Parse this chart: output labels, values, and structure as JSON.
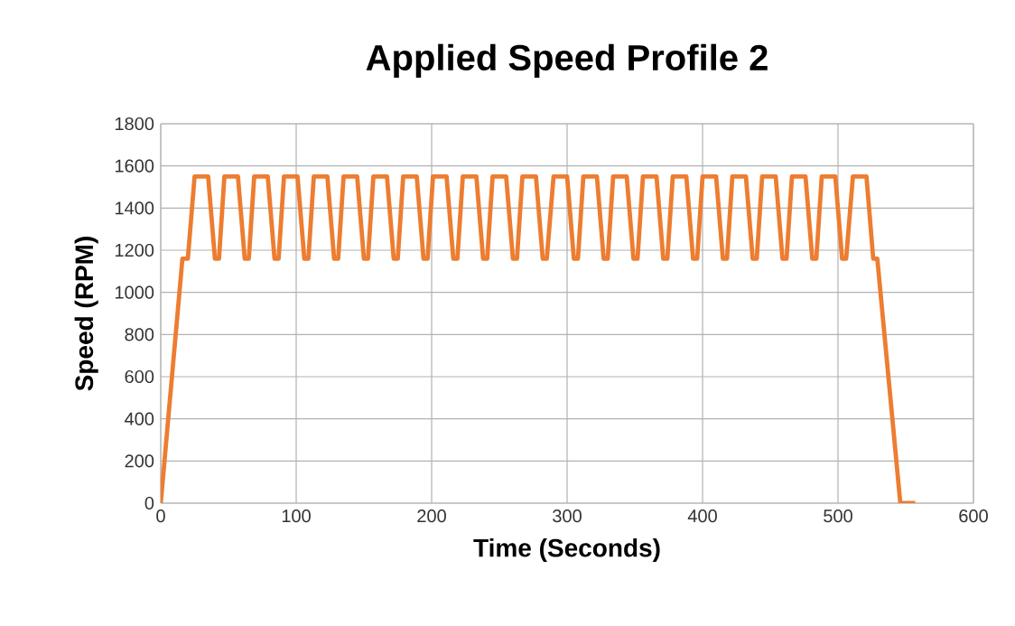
{
  "chart_data": {
    "type": "line",
    "title": "Applied Speed Profile 2",
    "xlabel": "Time (Seconds)",
    "ylabel": "Speed (RPM)",
    "x": [
      0,
      16,
      20,
      25,
      35,
      40,
      43,
      47,
      57,
      62,
      65,
      69,
      79,
      84,
      87,
      91,
      101,
      106,
      109,
      113,
      123,
      128,
      131,
      135,
      145,
      150,
      153,
      157,
      167,
      172,
      175,
      179,
      189,
      194,
      197,
      201,
      211,
      216,
      219,
      223,
      233,
      238,
      241,
      245,
      255,
      260,
      263,
      267,
      277,
      282,
      285,
      290,
      300,
      305,
      308,
      312,
      322,
      327,
      330,
      334,
      344,
      349,
      352,
      356,
      366,
      371,
      374,
      378,
      388,
      393,
      396,
      400,
      410,
      415,
      418,
      422,
      432,
      437,
      440,
      444,
      454,
      459,
      462,
      466,
      476,
      481,
      484,
      488,
      498,
      503,
      506,
      511,
      521,
      526,
      529,
      546,
      557
    ],
    "series": [
      {
        "color": "#ed7d31",
        "values": [
          0,
          1160,
          1160,
          1550,
          1550,
          1160,
          1160,
          1550,
          1550,
          1160,
          1160,
          1550,
          1550,
          1160,
          1160,
          1550,
          1550,
          1160,
          1160,
          1550,
          1550,
          1160,
          1160,
          1550,
          1550,
          1160,
          1160,
          1550,
          1550,
          1160,
          1160,
          1550,
          1550,
          1160,
          1160,
          1550,
          1550,
          1160,
          1160,
          1550,
          1550,
          1160,
          1160,
          1550,
          1550,
          1160,
          1160,
          1550,
          1550,
          1160,
          1160,
          1550,
          1550,
          1160,
          1160,
          1550,
          1550,
          1160,
          1160,
          1550,
          1550,
          1160,
          1160,
          1550,
          1550,
          1160,
          1160,
          1550,
          1550,
          1160,
          1160,
          1550,
          1550,
          1160,
          1160,
          1550,
          1550,
          1160,
          1160,
          1550,
          1550,
          1160,
          1160,
          1550,
          1550,
          1160,
          1160,
          1550,
          1550,
          1160,
          1160,
          1550,
          1550,
          1160,
          1160,
          0,
          0
        ]
      }
    ],
    "xlim": [
      0,
      600
    ],
    "xticks": [
      0,
      100,
      200,
      300,
      400,
      500,
      600
    ],
    "ylim": [
      0,
      1800
    ],
    "yticks": [
      0,
      200,
      400,
      600,
      800,
      1000,
      1200,
      1400,
      1600,
      1800
    ],
    "grid": true,
    "legend": false,
    "marker": "none",
    "line_style": "solid"
  }
}
